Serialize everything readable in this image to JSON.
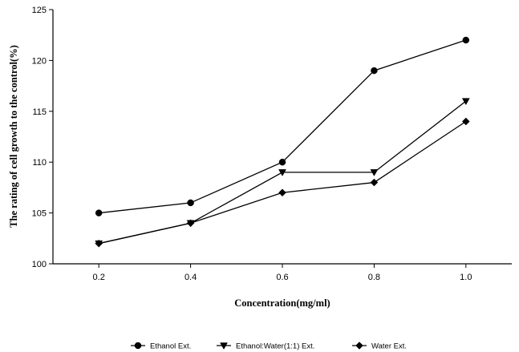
{
  "chart_data": {
    "type": "line",
    "xlabel": "Concentration(mg/ml)",
    "ylabel": "The rating of cell growth to the control(%)",
    "x": [
      0.2,
      0.4,
      0.6,
      0.8,
      1.0
    ],
    "x_tick_labels": [
      "0.2",
      "0.4",
      "0.6",
      "0.8",
      "1.0"
    ],
    "xlim": [
      0.1,
      1.1
    ],
    "ylim": [
      100,
      125
    ],
    "y_ticks": [
      100,
      105,
      110,
      115,
      120,
      125
    ],
    "grid": false,
    "legend_position": "bottom",
    "series": [
      {
        "name": "Ethanol Ext.",
        "marker": "circle",
        "values": [
          105,
          106,
          110,
          119,
          122
        ]
      },
      {
        "name": "Ethanol:Water(1:1) Ext.",
        "marker": "triangle-down",
        "values": [
          102,
          104,
          109,
          109,
          116
        ]
      },
      {
        "name": "Water Ext.",
        "marker": "diamond",
        "values": [
          102,
          104,
          107,
          108,
          114
        ]
      }
    ]
  }
}
